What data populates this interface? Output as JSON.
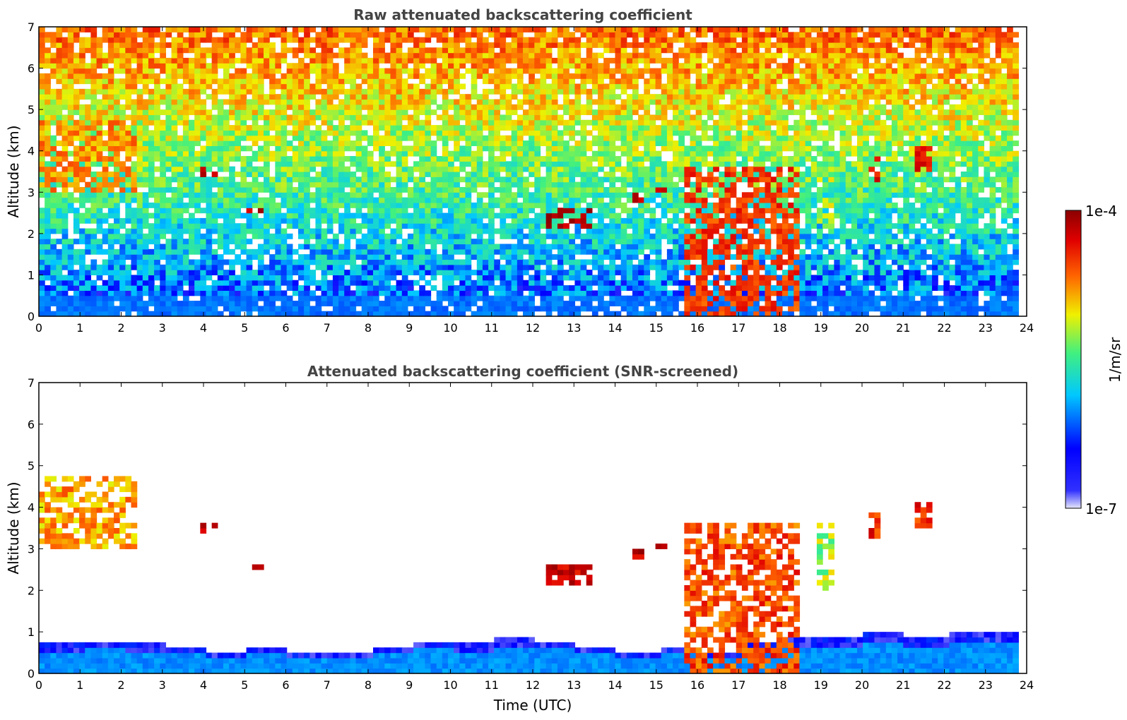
{
  "chart_data": [
    {
      "type": "heatmap",
      "title": "Raw attenuated backscattering coefficient",
      "xlabel": "",
      "ylabel": "Altitude (km)",
      "xlim": [
        0,
        24
      ],
      "ylim": [
        0,
        7
      ],
      "xticks": [
        "0",
        "1",
        "2",
        "3",
        "4",
        "5",
        "6",
        "7",
        "8",
        "9",
        "10",
        "11",
        "12",
        "13",
        "14",
        "15",
        "16",
        "17",
        "18",
        "19",
        "20",
        "21",
        "22",
        "23",
        "24"
      ],
      "yticks": [
        "0",
        "1",
        "2",
        "3",
        "4",
        "5",
        "6",
        "7"
      ],
      "data_end_time": 23.8,
      "features": [
        {
          "t0": 0.0,
          "t1": 2.3,
          "z0": 3.0,
          "z1": 4.7,
          "level": 0.75
        },
        {
          "t0": 3.9,
          "t1": 4.2,
          "z0": 3.35,
          "z1": 3.55,
          "level": 1.0
        },
        {
          "t0": 4.95,
          "t1": 5.35,
          "z0": 2.45,
          "z1": 2.6,
          "level": 1.0
        },
        {
          "t0": 12.3,
          "t1": 13.3,
          "z0": 2.1,
          "z1": 2.6,
          "level": 1.0
        },
        {
          "t0": 14.3,
          "t1": 14.65,
          "z0": 2.7,
          "z1": 2.95,
          "level": 1.0
        },
        {
          "t0": 14.9,
          "t1": 15.2,
          "z0": 3.0,
          "z1": 3.1,
          "level": 1.0
        },
        {
          "t0": 15.6,
          "t1": 18.4,
          "z0": 0.0,
          "z1": 3.6,
          "level": 0.85
        },
        {
          "t0": 18.8,
          "t1": 19.3,
          "z0": 2.0,
          "z1": 3.5,
          "level": 0.6
        },
        {
          "t0": 20.1,
          "t1": 20.4,
          "z0": 3.2,
          "z1": 3.75,
          "level": 0.9
        },
        {
          "t0": 21.2,
          "t1": 21.7,
          "z0": 3.4,
          "z1": 4.1,
          "level": 0.9
        }
      ]
    },
    {
      "type": "heatmap",
      "title": "Attenuated backscattering coefficient (SNR-screened)",
      "xlabel": "Time (UTC)",
      "ylabel": "Altitude (km)",
      "xlim": [
        0,
        24
      ],
      "ylim": [
        0,
        7
      ],
      "xticks": [
        "0",
        "1",
        "2",
        "3",
        "4",
        "5",
        "6",
        "7",
        "8",
        "9",
        "10",
        "11",
        "12",
        "13",
        "14",
        "15",
        "16",
        "17",
        "18",
        "19",
        "20",
        "21",
        "22",
        "23",
        "24"
      ],
      "yticks": [
        "0",
        "1",
        "2",
        "3",
        "4",
        "5",
        "6",
        "7"
      ],
      "data_end_time": 23.8,
      "boundary_layer_top_km": [
        0.7,
        0.75,
        0.7,
        0.55,
        0.5,
        0.55,
        0.5,
        0.45,
        0.55,
        0.75,
        0.7,
        0.8,
        0.75,
        0.6,
        0.5,
        0.55,
        0.5,
        0.75,
        0.8,
        0.85,
        0.9,
        0.85,
        0.9,
        0.95,
        0.9
      ]
    }
  ],
  "colorbar": {
    "label": "1/m/sr",
    "max_label": "1e-4",
    "min_label": "1e-7",
    "colors": [
      "#e6e6fa",
      "#0000ff",
      "#00c8ff",
      "#40f080",
      "#f0f000",
      "#ff6400",
      "#e00000",
      "#8b0000"
    ]
  }
}
